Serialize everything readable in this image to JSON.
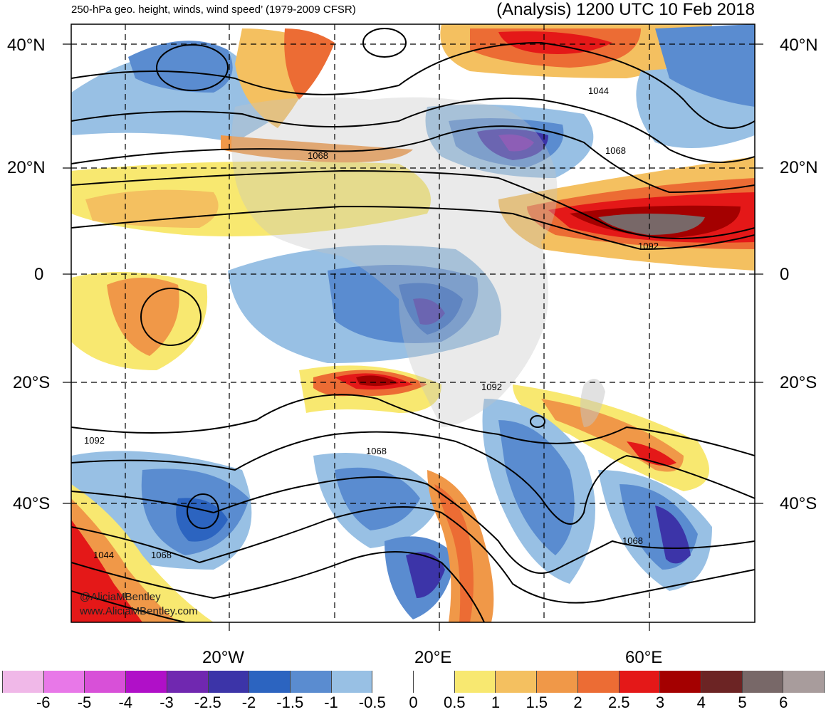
{
  "header": {
    "left_title": "250-hPa geo. height, winds, wind speed’ (1979-2009 CFSR)",
    "right_title": "(Analysis) 1200 UTC 10 Feb 2018"
  },
  "map": {
    "lat_labels": [
      "40°N",
      "20°N",
      "0",
      "20°S",
      "40°S"
    ],
    "lon_labels": [
      "20°W",
      "20°E",
      "60°E"
    ],
    "contour_labels": [
      "1068",
      "1044",
      "1068",
      "1092",
      "1092",
      "1092",
      "1068",
      "1068",
      "1044",
      "1068"
    ],
    "colors": {
      "land_gray": "#c4c4c4",
      "grid": "#000000"
    }
  },
  "credits": {
    "handle": "@AliciaMBentley",
    "site": "www.AliciaMBentley.com"
  },
  "colorbar": {
    "colors": [
      "#f0b8e8",
      "#e878e8",
      "#d850d8",
      "#b010c8",
      "#7028b0",
      "#3c34a8",
      "#2c64c0",
      "#5a8cd0",
      "#98c0e4",
      "#ffffff",
      "#ffffff",
      "#f8e870",
      "#f4c060",
      "#f09848",
      "#ec6c34",
      "#e41818",
      "#a40000",
      "#6c2424",
      "#786868",
      "#a89c9c"
    ],
    "labels": [
      "-6",
      "-5",
      "-4",
      "-3",
      "-2.5",
      "-2",
      "-1.5",
      "-1",
      "-0.5",
      "0",
      "0.5",
      "1",
      "1.5",
      "2",
      "2.5",
      "3",
      "4",
      "5",
      "6"
    ]
  }
}
